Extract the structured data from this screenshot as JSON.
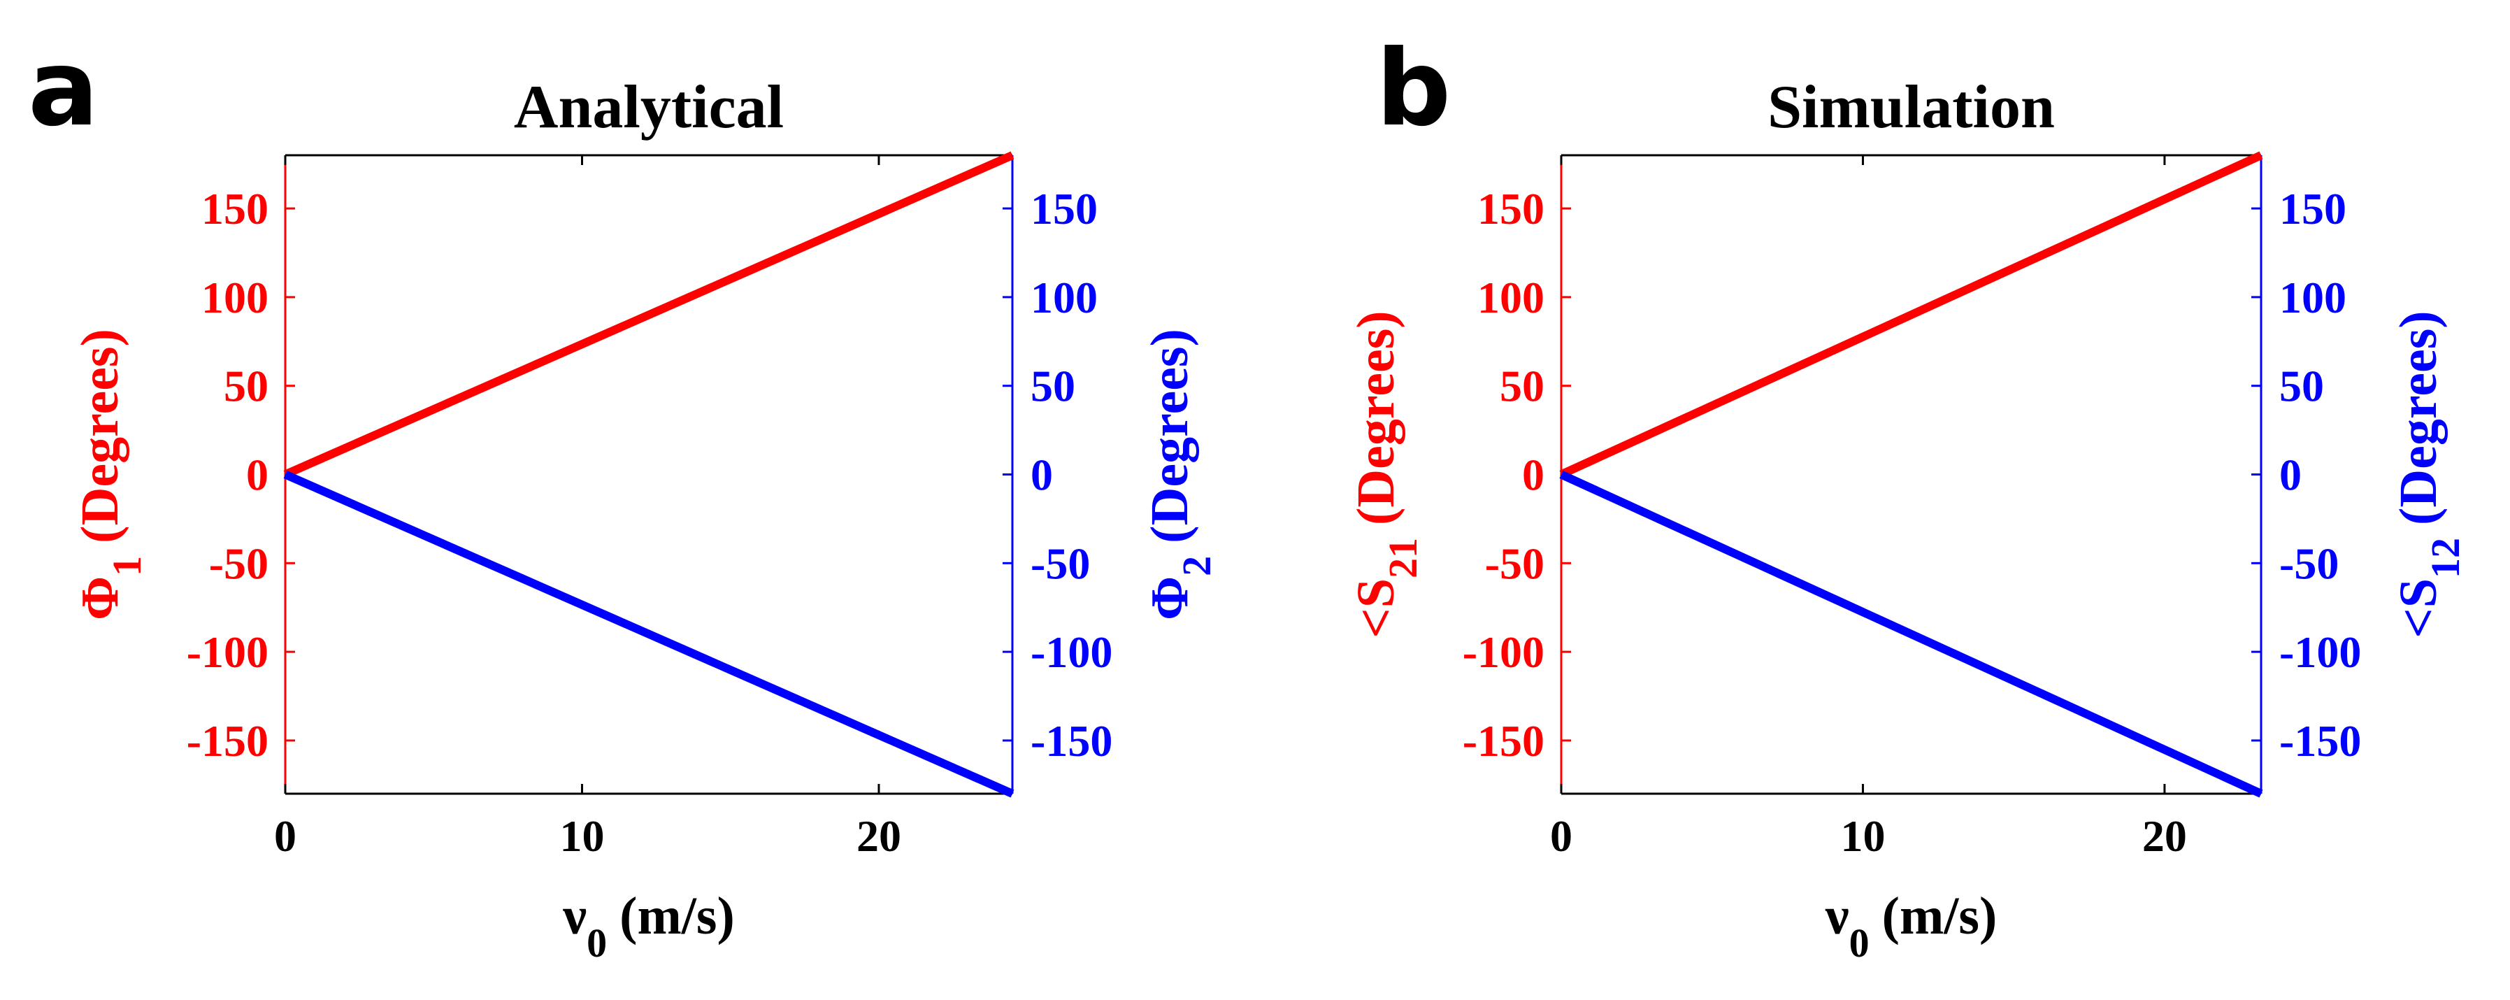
{
  "colors": {
    "left_axis": "#ff0000",
    "right_axis": "#0000ff",
    "axis": "#000000"
  },
  "chart_data": [
    {
      "type": "line",
      "panel_label": "a",
      "title": "Analytical",
      "xlabel": {
        "symbol": "ν",
        "sub": "0",
        "text": "(m/s)"
      },
      "ylabel_left": {
        "symbol": "Φ",
        "sub": "1",
        "text": "(Degrees)"
      },
      "ylabel_right": {
        "symbol": "Φ",
        "sub": "2",
        "text": "(Degrees)"
      },
      "xlim": [
        0,
        24.5
      ],
      "ylim": [
        -180,
        180
      ],
      "xticks": [
        0,
        10,
        20
      ],
      "yticks": [
        -150,
        -100,
        -50,
        0,
        50,
        100,
        150
      ],
      "grid": false,
      "series": [
        {
          "axis": "left",
          "color": "#ff0000",
          "x": [
            0,
            24.5
          ],
          "y": [
            0,
            180
          ]
        },
        {
          "axis": "right",
          "color": "#0000ff",
          "x": [
            0,
            24.5
          ],
          "y": [
            0,
            -180
          ]
        }
      ]
    },
    {
      "type": "line",
      "panel_label": "b",
      "title": "Simulation",
      "xlabel": {
        "symbol": "ν",
        "sub": "0",
        "text": "(m/s)"
      },
      "ylabel_left": {
        "symbol": "<S",
        "sub": "21",
        "text": "(Degrees)"
      },
      "ylabel_right": {
        "symbol": "<S",
        "sub": "12",
        "text": "(Degrees)"
      },
      "xlim": [
        0,
        23.2
      ],
      "ylim": [
        -180,
        180
      ],
      "xticks": [
        0,
        10,
        20
      ],
      "yticks": [
        -150,
        -100,
        -50,
        0,
        50,
        100,
        150
      ],
      "grid": false,
      "series": [
        {
          "axis": "left",
          "color": "#ff0000",
          "x": [
            0,
            23.2
          ],
          "y": [
            0,
            180
          ]
        },
        {
          "axis": "right",
          "color": "#0000ff",
          "x": [
            0,
            23.2
          ],
          "y": [
            0,
            -180
          ]
        }
      ]
    }
  ]
}
